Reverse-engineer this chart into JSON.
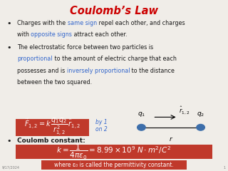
{
  "title": "Coulomb’s Law",
  "title_color": "#cc0000",
  "bg_color": "#f0ede8",
  "box_color": "#c0392b",
  "formula1": "$\\vec{F}_{1,2}= k\\,\\dfrac{q_1 q_2}{r_{1,2}^2}\\,\\hat{r}_{1,2}$",
  "by1on2": "by 1\non 2",
  "coulomb_label": "Coulomb constant:",
  "formula2": "$k = \\dfrac{1}{4\\pi\\varepsilon_0} = 8.99\\times10^9\\;N\\cdot m^2/C^2$",
  "footer_box": "where ε₀ is called the permittivity constant.",
  "rhat_label": "$\\hat{r}_{1,2}$",
  "q1_label": "$q_1$",
  "q2_label": "$q_2$",
  "r_label": "$r$",
  "date_text": "9/17/2024",
  "page_num": "1",
  "text_color": "#1a1a1a",
  "blue_color": "#3366cc",
  "dot_color": "#3d6eaa"
}
